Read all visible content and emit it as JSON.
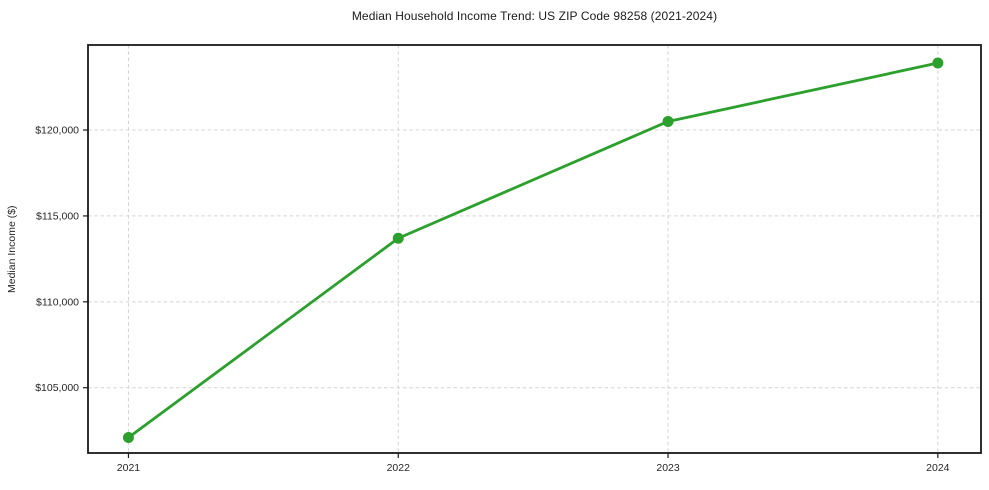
{
  "chart_data": {
    "type": "line",
    "title": "Median Household Income Trend: US ZIP Code 98258 (2021-2024)",
    "xlabel": "",
    "ylabel": "Median Income ($)",
    "x": [
      2021,
      2022,
      2023,
      2024
    ],
    "series": [
      {
        "name": "Median Household Income",
        "values": [
          102100,
          113700,
          120500,
          123900
        ]
      }
    ],
    "x_ticks": [
      {
        "value": 2021,
        "label": "2021"
      },
      {
        "value": 2022,
        "label": "2022"
      },
      {
        "value": 2023,
        "label": "2023"
      },
      {
        "value": 2024,
        "label": "2024"
      }
    ],
    "y_ticks": [
      {
        "value": 105000,
        "label": "$105,000"
      },
      {
        "value": 110000,
        "label": "$110,000"
      },
      {
        "value": 115000,
        "label": "$115,000"
      },
      {
        "value": 120000,
        "label": "$120,000"
      }
    ],
    "xlim": [
      2020.85,
      2024.16
    ],
    "ylim": [
      101200,
      124950
    ],
    "grid": true,
    "grid_style": "dashed",
    "legend": "none",
    "colors": {
      "line": "#2ca02c",
      "marker": "#2ca02c",
      "grid": "#d4d4d4",
      "axis": "#1a1a1a",
      "text": "#262626",
      "title": "#1a1a1a"
    },
    "line_width": 2.8,
    "marker_radius": 5.5
  }
}
